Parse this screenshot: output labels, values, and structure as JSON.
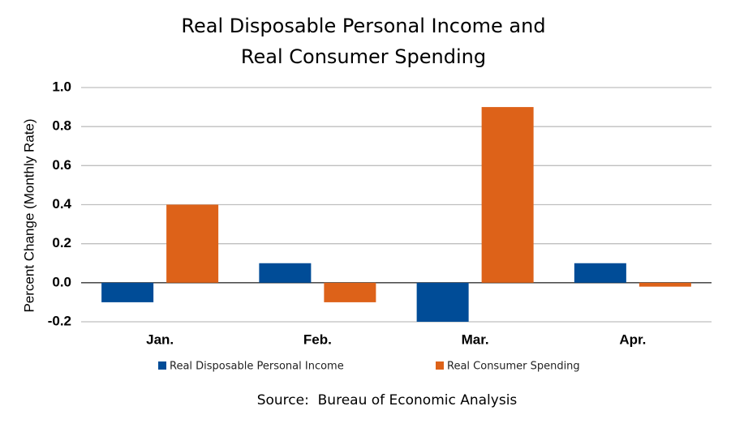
{
  "chart_data": {
    "type": "bar",
    "title": [
      "Real Disposable Personal Income and",
      "Real Consumer Spending"
    ],
    "y_label": "Percent Change (Monthly Rate)",
    "source": "Source:  Bureau of Economic Analysis",
    "categories": [
      "Jan.",
      "Feb.",
      "Mar.",
      "Apr."
    ],
    "series": [
      {
        "name": "Real Disposable Personal Income",
        "color": "#004c97",
        "values": [
          -0.1,
          0.1,
          -0.2,
          0.1
        ]
      },
      {
        "name": "Real Consumer Spending",
        "color": "#dd6219",
        "values": [
          0.4,
          -0.1,
          0.9,
          -0.02
        ]
      }
    ],
    "ylim": [
      -0.2,
      1.0
    ],
    "yticks": [
      -0.2,
      {
        "value": 0.0,
        "label": "0.0"
      },
      0.2,
      0.4,
      0.6,
      0.8,
      {
        "value": 1.0,
        "label": "1.0"
      }
    ],
    "grid": true
  }
}
